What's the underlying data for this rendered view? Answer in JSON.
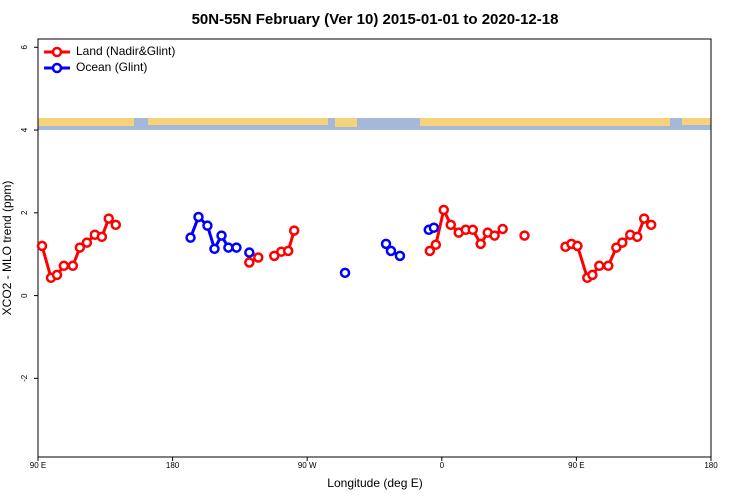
{
  "chart_data": {
    "type": "line",
    "title": "50N-55N February (Ver 10)   2015-01-01 to 2020-12-18",
    "x_label": "Longitude (deg E)",
    "y_label": "XCO2 - MLO trend (ppm)",
    "xlim": [
      90,
      540
    ],
    "xticks": [
      {
        "value": 90,
        "label": "90 E"
      },
      180,
      {
        "value": 270,
        "label": "90 W"
      },
      {
        "value": 360,
        "label": "0"
      },
      {
        "value": 450,
        "label": "90 E"
      },
      {
        "value": 540,
        "label": "180"
      }
    ],
    "ylim": [
      -3.9,
      6.2
    ],
    "yticks": [
      -2,
      0,
      2,
      4,
      6
    ],
    "legend": "top-left",
    "series": [
      {
        "name": "Land (Nadir&Glint)",
        "color": "#ff0000",
        "x": [
          92.7,
          98.7,
          102.7,
          107.3,
          113.3,
          118,
          122.7,
          128,
          132.7,
          137.3,
          142,
          null,
          231.3,
          237.3,
          null,
          248,
          252.7,
          257.3,
          261.3,
          null,
          352,
          356,
          361.3,
          366,
          371.3,
          376,
          380.7,
          386,
          390.7,
          395.3,
          400.7,
          null,
          415.3,
          null,
          442.7,
          446.7,
          450.7,
          457.3,
          460.7,
          465.3,
          471.3,
          476.7,
          480.7,
          486,
          490.7,
          495.3,
          500
        ],
        "values": [
          1.2,
          0.43,
          0.5,
          0.72,
          0.72,
          1.16,
          1.28,
          1.47,
          1.42,
          1.86,
          1.71,
          null,
          0.8,
          0.92,
          null,
          0.96,
          1.06,
          1.08,
          1.57,
          null,
          1.08,
          1.23,
          2.07,
          1.71,
          1.52,
          1.59,
          1.59,
          1.25,
          1.52,
          1.45,
          1.61,
          null,
          1.45,
          null,
          1.18,
          1.25,
          1.2,
          0.43,
          0.5,
          0.72,
          0.72,
          1.16,
          1.28,
          1.47,
          1.42,
          1.86,
          1.71
        ]
      },
      {
        "name": "Ocean (Glint)",
        "color": "#0000ff",
        "x": [
          192,
          197.3,
          203.3,
          208,
          212.7,
          217.3,
          222.7,
          null,
          231.3,
          null,
          295.3,
          null,
          322.7,
          326,
          332,
          null,
          351.3,
          354.7
        ],
        "values": [
          1.4,
          1.9,
          1.69,
          1.13,
          1.45,
          1.16,
          1.16,
          null,
          1.04,
          null,
          0.55,
          null,
          1.25,
          1.08,
          0.96,
          null,
          1.59,
          1.64
        ]
      }
    ]
  }
}
